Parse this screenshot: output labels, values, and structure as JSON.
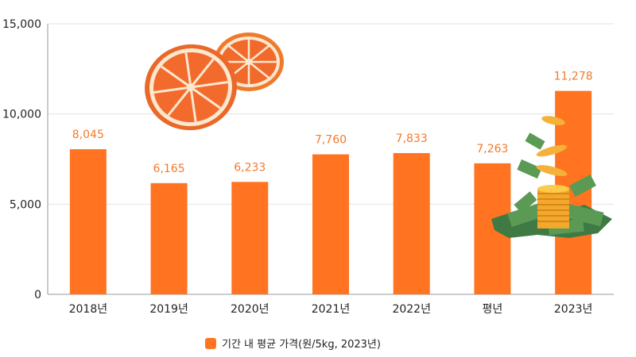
{
  "chart_data": {
    "type": "bar",
    "categories": [
      "2018년",
      "2019년",
      "2020년",
      "2021년",
      "2022년",
      "평년",
      "2023년"
    ],
    "series": [
      {
        "name": "기간 내 평균 가격(원/5kg, 2023년)",
        "values": [
          8045,
          6165,
          6233,
          7760,
          7833,
          7263,
          11278
        ],
        "data_labels": [
          "8,045",
          "6,165",
          "6,233",
          "7,760",
          "7,833",
          "7,263",
          "11,278"
        ]
      }
    ],
    "y_ticks": [
      "0",
      "5,000",
      "10,000",
      "15,000"
    ],
    "y_tick_values": [
      0,
      5000,
      10000,
      15000
    ],
    "ylim": [
      0,
      15000
    ],
    "grid": true,
    "legend": "bottom-center",
    "colors": {
      "bar": "#ff7321",
      "label": "#f27a2c",
      "grid": "#e3e3e3",
      "axis": "#999999"
    },
    "decorations": [
      "orange-slices-icon",
      "coins-and-cash-icon"
    ]
  }
}
